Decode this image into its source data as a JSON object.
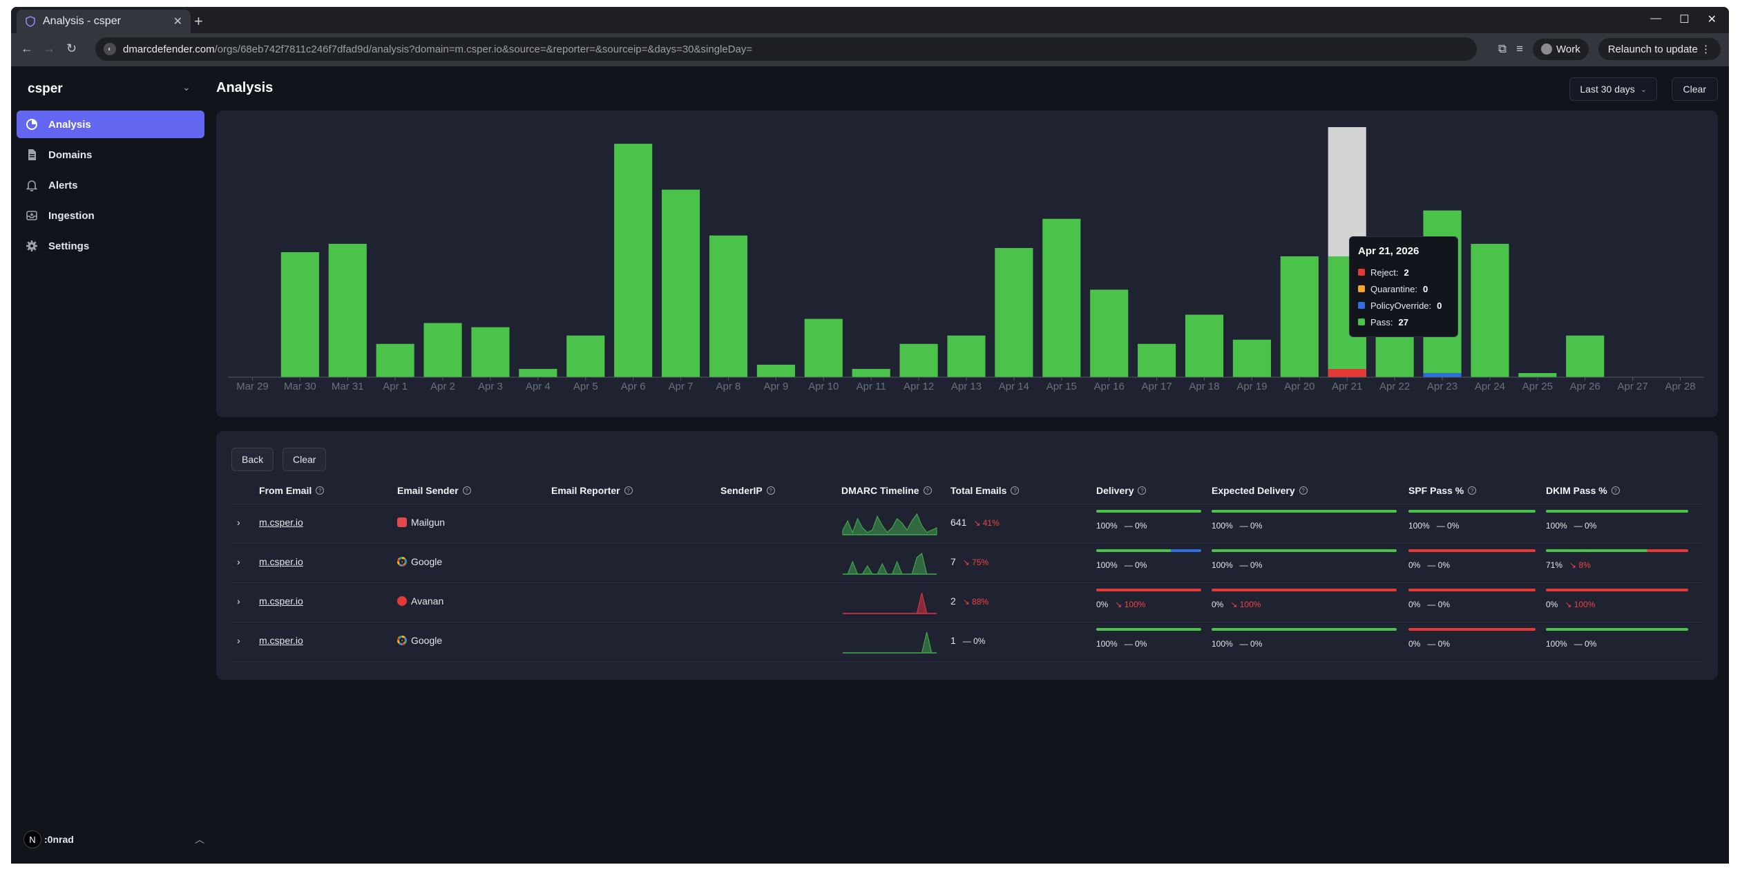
{
  "browser": {
    "tab_title": "Analysis - csper",
    "url_host": "dmarcdefender.com",
    "url_path": "/orgs/68eb742f7811c246f7dfad9d/analysis?domain=m.csper.io&source=&reporter=&sourceip=&days=30&singleDay=",
    "profile": "Work",
    "relaunch": "Relaunch to update"
  },
  "sidebar": {
    "org": "csper",
    "items": [
      {
        "label": "Analysis",
        "icon": "pie-chart-icon"
      },
      {
        "label": "Domains",
        "icon": "document-icon"
      },
      {
        "label": "Alerts",
        "icon": "bell-icon"
      },
      {
        "label": "Ingestion",
        "icon": "inbox-icon"
      },
      {
        "label": "Settings",
        "icon": "gear-icon"
      }
    ],
    "user": ":0nrad",
    "avatar_letter": "N"
  },
  "header": {
    "title": "Analysis",
    "range": "Last 30 days",
    "clear": "Clear"
  },
  "colors": {
    "pass": "#4bc34b",
    "reject": "#e53935",
    "quarantine": "#f5a623",
    "policy_override": "#2f6fe0",
    "accent": "#6366f1"
  },
  "chart_data": {
    "type": "bar",
    "stacked": true,
    "categories": [
      "Mar 29",
      "Mar 30",
      "Mar 31",
      "Apr 1",
      "Apr 2",
      "Apr 3",
      "Apr 4",
      "Apr 5",
      "Apr 6",
      "Apr 7",
      "Apr 8",
      "Apr 9",
      "Apr 10",
      "Apr 11",
      "Apr 12",
      "Apr 13",
      "Apr 14",
      "Apr 15",
      "Apr 16",
      "Apr 17",
      "Apr 18",
      "Apr 19",
      "Apr 20",
      "Apr 21",
      "Apr 22",
      "Apr 23",
      "Apr 24",
      "Apr 25",
      "Apr 26",
      "Apr 27",
      "Apr 28"
    ],
    "series": [
      {
        "name": "Reject",
        "values": [
          0,
          0,
          0,
          0,
          0,
          0,
          0,
          0,
          0,
          0,
          0,
          0,
          0,
          0,
          0,
          0,
          0,
          0,
          0,
          0,
          0,
          0,
          0,
          2,
          0,
          0,
          0,
          0,
          0,
          0,
          0
        ]
      },
      {
        "name": "Quarantine",
        "values": [
          0,
          0,
          0,
          0,
          0,
          0,
          0,
          0,
          0,
          0,
          0,
          0,
          0,
          0,
          0,
          0,
          0,
          0,
          0,
          0,
          0,
          0,
          0,
          0,
          0,
          0,
          0,
          0,
          0,
          0,
          0
        ]
      },
      {
        "name": "PolicyOverride",
        "values": [
          0,
          0,
          0,
          0,
          0,
          0,
          0,
          0,
          0,
          0,
          0,
          0,
          0,
          0,
          0,
          0,
          0,
          0,
          0,
          0,
          0,
          0,
          0,
          0,
          0,
          1,
          0,
          0,
          0,
          0,
          0
        ]
      },
      {
        "name": "Pass",
        "values": [
          0,
          30,
          32,
          8,
          13,
          12,
          2,
          10,
          56,
          45,
          34,
          3,
          14,
          2,
          8,
          10,
          31,
          38,
          21,
          8,
          15,
          9,
          29,
          27,
          20,
          39,
          32,
          1,
          10,
          0,
          0
        ]
      }
    ],
    "ylim": [
      0,
      60
    ],
    "highlight_category": "Apr 21",
    "grid": false,
    "legend": "none"
  },
  "tooltip": {
    "date": "Apr 21, 2026",
    "rows": [
      {
        "label": "Reject:",
        "value": "2",
        "color": "#e53935"
      },
      {
        "label": "Quarantine:",
        "value": "0",
        "color": "#f5a623"
      },
      {
        "label": "PolicyOverride:",
        "value": "0",
        "color": "#2f6fe0"
      },
      {
        "label": "Pass:",
        "value": "27",
        "color": "#4bc34b"
      }
    ]
  },
  "table": {
    "back": "Back",
    "clear": "Clear",
    "columns": [
      "From Email",
      "Email Sender",
      "Email Reporter",
      "SenderIP",
      "DMARC Timeline",
      "Total Emails",
      "Delivery",
      "Expected Delivery",
      "SPF Pass %",
      "DKIM Pass %"
    ],
    "rows": [
      {
        "from": "m.csper.io",
        "sender": "Mailgun",
        "sender_icon": "mailgun-icon",
        "sender_color": "#e5484d",
        "timeline_color": "#3fa34d",
        "timeline": [
          2,
          6,
          1,
          7,
          3,
          1,
          2,
          8,
          4,
          1,
          3,
          7,
          5,
          2,
          6,
          9,
          4,
          1,
          2,
          3
        ],
        "total": "641",
        "total_chg": "↘ 41%",
        "total_bad": true,
        "delivery": {
          "pct": 1.0,
          "text": "100%",
          "chg": "— 0%",
          "bad": false,
          "color": "#4bc34b"
        },
        "expected": {
          "pct": 1.0,
          "text": "100%",
          "chg": "— 0%",
          "bad": false,
          "color": "#4bc34b"
        },
        "spf": {
          "pct": 1.0,
          "text": "100%",
          "chg": "— 0%",
          "bad": false,
          "color": "#4bc34b"
        },
        "dkim": {
          "pct": 1.0,
          "text": "100%",
          "chg": "— 0%",
          "bad": false,
          "color": "#4bc34b"
        }
      },
      {
        "from": "m.csper.io",
        "sender": "Google",
        "sender_icon": "google-icon",
        "sender_color": "#f3f4f6",
        "timeline_color": "#3fa34d",
        "timeline": [
          0,
          0,
          6,
          0,
          0,
          4,
          0,
          0,
          5,
          0,
          0,
          6,
          0,
          0,
          0,
          8,
          10,
          0,
          0,
          0
        ],
        "total": "7",
        "total_chg": "↘ 75%",
        "total_bad": true,
        "delivery": {
          "pct": 0.71,
          "text": "100%",
          "chg": "— 0%",
          "bad": false,
          "color": "#4bc34b",
          "rest_color": "#2f6fe0"
        },
        "expected": {
          "pct": 1.0,
          "text": "100%",
          "chg": "— 0%",
          "bad": false,
          "color": "#4bc34b"
        },
        "spf": {
          "pct": 0.0,
          "text": "0%",
          "chg": "— 0%",
          "bad": false,
          "color": "#e53935"
        },
        "dkim": {
          "pct": 0.71,
          "text": "71%",
          "chg": "↘ 8%",
          "bad": true,
          "color": "#4bc34b",
          "rest_color": "#e53935"
        }
      },
      {
        "from": "m.csper.io",
        "sender": "Avanan",
        "sender_icon": "avanan-icon",
        "sender_color": "#e53935",
        "timeline_color": "#d63344",
        "timeline": [
          0,
          0,
          0,
          0,
          0,
          0,
          0,
          0,
          0,
          0,
          0,
          0,
          0,
          0,
          0,
          0,
          10,
          0,
          0,
          0
        ],
        "total": "2",
        "total_chg": "↘ 88%",
        "total_bad": true,
        "delivery": {
          "pct": 0.0,
          "text": "0%",
          "chg": "↘ 100%",
          "bad": true,
          "color": "#e53935"
        },
        "expected": {
          "pct": 0.0,
          "text": "0%",
          "chg": "↘ 100%",
          "bad": true,
          "color": "#e53935"
        },
        "spf": {
          "pct": 0.0,
          "text": "0%",
          "chg": "— 0%",
          "bad": false,
          "color": "#e53935"
        },
        "dkim": {
          "pct": 0.0,
          "text": "0%",
          "chg": "↘ 100%",
          "bad": true,
          "color": "#e53935"
        }
      },
      {
        "from": "m.csper.io",
        "sender": "Google",
        "sender_icon": "google-icon",
        "sender_color": "#f3f4f6",
        "timeline_color": "#3fa34d",
        "timeline": [
          0,
          0,
          0,
          0,
          0,
          0,
          0,
          0,
          0,
          0,
          0,
          0,
          0,
          0,
          0,
          0,
          0,
          10,
          0,
          0
        ],
        "total": "1",
        "total_chg": "— 0%",
        "total_bad": false,
        "delivery": {
          "pct": 1.0,
          "text": "100%",
          "chg": "— 0%",
          "bad": false,
          "color": "#4bc34b"
        },
        "expected": {
          "pct": 1.0,
          "text": "100%",
          "chg": "— 0%",
          "bad": false,
          "color": "#4bc34b"
        },
        "spf": {
          "pct": 0.0,
          "text": "0%",
          "chg": "— 0%",
          "bad": false,
          "color": "#e53935"
        },
        "dkim": {
          "pct": 1.0,
          "text": "100%",
          "chg": "— 0%",
          "bad": false,
          "color": "#4bc34b"
        }
      }
    ]
  }
}
